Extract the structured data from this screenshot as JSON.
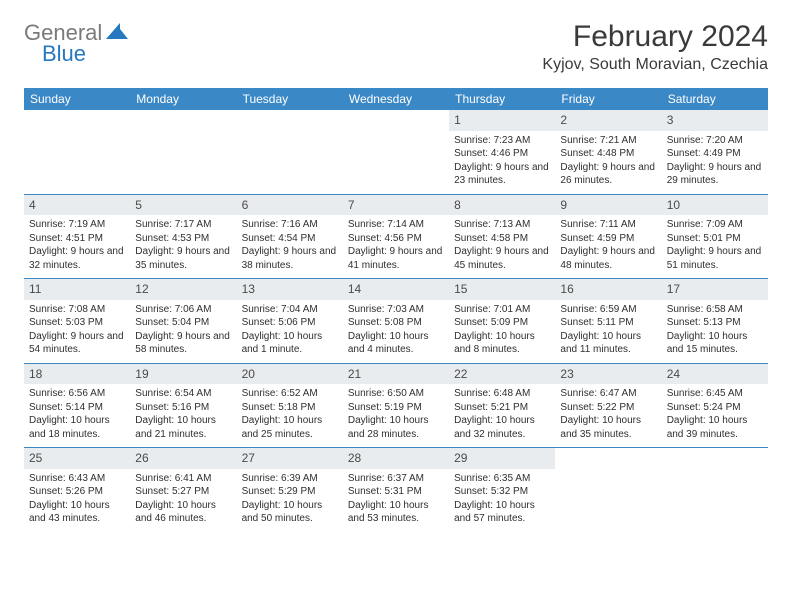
{
  "logo": {
    "text_gray": "General",
    "text_blue": "Blue"
  },
  "title": "February 2024",
  "location": "Kyjov, South Moravian, Czechia",
  "colors": {
    "header_bg": "#3b88c7",
    "daynum_bg": "#e9ecef",
    "logo_gray": "#7a7a7a",
    "logo_blue": "#2678c0",
    "text": "#3a3a3a",
    "row_border": "#3b88c7"
  },
  "day_headers": [
    "Sunday",
    "Monday",
    "Tuesday",
    "Wednesday",
    "Thursday",
    "Friday",
    "Saturday"
  ],
  "weeks": [
    [
      null,
      null,
      null,
      null,
      {
        "n": "1",
        "sr": "7:23 AM",
        "ss": "4:46 PM",
        "dl": "9 hours and 23 minutes."
      },
      {
        "n": "2",
        "sr": "7:21 AM",
        "ss": "4:48 PM",
        "dl": "9 hours and 26 minutes."
      },
      {
        "n": "3",
        "sr": "7:20 AM",
        "ss": "4:49 PM",
        "dl": "9 hours and 29 minutes."
      }
    ],
    [
      {
        "n": "4",
        "sr": "7:19 AM",
        "ss": "4:51 PM",
        "dl": "9 hours and 32 minutes."
      },
      {
        "n": "5",
        "sr": "7:17 AM",
        "ss": "4:53 PM",
        "dl": "9 hours and 35 minutes."
      },
      {
        "n": "6",
        "sr": "7:16 AM",
        "ss": "4:54 PM",
        "dl": "9 hours and 38 minutes."
      },
      {
        "n": "7",
        "sr": "7:14 AM",
        "ss": "4:56 PM",
        "dl": "9 hours and 41 minutes."
      },
      {
        "n": "8",
        "sr": "7:13 AM",
        "ss": "4:58 PM",
        "dl": "9 hours and 45 minutes."
      },
      {
        "n": "9",
        "sr": "7:11 AM",
        "ss": "4:59 PM",
        "dl": "9 hours and 48 minutes."
      },
      {
        "n": "10",
        "sr": "7:09 AM",
        "ss": "5:01 PM",
        "dl": "9 hours and 51 minutes."
      }
    ],
    [
      {
        "n": "11",
        "sr": "7:08 AM",
        "ss": "5:03 PM",
        "dl": "9 hours and 54 minutes."
      },
      {
        "n": "12",
        "sr": "7:06 AM",
        "ss": "5:04 PM",
        "dl": "9 hours and 58 minutes."
      },
      {
        "n": "13",
        "sr": "7:04 AM",
        "ss": "5:06 PM",
        "dl": "10 hours and 1 minute."
      },
      {
        "n": "14",
        "sr": "7:03 AM",
        "ss": "5:08 PM",
        "dl": "10 hours and 4 minutes."
      },
      {
        "n": "15",
        "sr": "7:01 AM",
        "ss": "5:09 PM",
        "dl": "10 hours and 8 minutes."
      },
      {
        "n": "16",
        "sr": "6:59 AM",
        "ss": "5:11 PM",
        "dl": "10 hours and 11 minutes."
      },
      {
        "n": "17",
        "sr": "6:58 AM",
        "ss": "5:13 PM",
        "dl": "10 hours and 15 minutes."
      }
    ],
    [
      {
        "n": "18",
        "sr": "6:56 AM",
        "ss": "5:14 PM",
        "dl": "10 hours and 18 minutes."
      },
      {
        "n": "19",
        "sr": "6:54 AM",
        "ss": "5:16 PM",
        "dl": "10 hours and 21 minutes."
      },
      {
        "n": "20",
        "sr": "6:52 AM",
        "ss": "5:18 PM",
        "dl": "10 hours and 25 minutes."
      },
      {
        "n": "21",
        "sr": "6:50 AM",
        "ss": "5:19 PM",
        "dl": "10 hours and 28 minutes."
      },
      {
        "n": "22",
        "sr": "6:48 AM",
        "ss": "5:21 PM",
        "dl": "10 hours and 32 minutes."
      },
      {
        "n": "23",
        "sr": "6:47 AM",
        "ss": "5:22 PM",
        "dl": "10 hours and 35 minutes."
      },
      {
        "n": "24",
        "sr": "6:45 AM",
        "ss": "5:24 PM",
        "dl": "10 hours and 39 minutes."
      }
    ],
    [
      {
        "n": "25",
        "sr": "6:43 AM",
        "ss": "5:26 PM",
        "dl": "10 hours and 43 minutes."
      },
      {
        "n": "26",
        "sr": "6:41 AM",
        "ss": "5:27 PM",
        "dl": "10 hours and 46 minutes."
      },
      {
        "n": "27",
        "sr": "6:39 AM",
        "ss": "5:29 PM",
        "dl": "10 hours and 50 minutes."
      },
      {
        "n": "28",
        "sr": "6:37 AM",
        "ss": "5:31 PM",
        "dl": "10 hours and 53 minutes."
      },
      {
        "n": "29",
        "sr": "6:35 AM",
        "ss": "5:32 PM",
        "dl": "10 hours and 57 minutes."
      },
      null,
      null
    ]
  ],
  "labels": {
    "sunrise": "Sunrise:",
    "sunset": "Sunset:",
    "daylight": "Daylight:"
  }
}
